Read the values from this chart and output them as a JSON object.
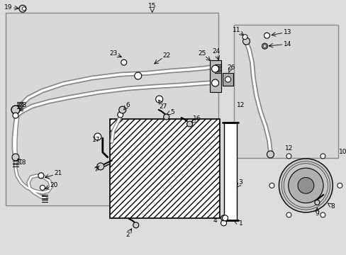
{
  "bg_color": "#dcdcdc",
  "box_color": "#d0d0d0",
  "fig_width": 4.89,
  "fig_height": 3.6,
  "dpi": 100
}
